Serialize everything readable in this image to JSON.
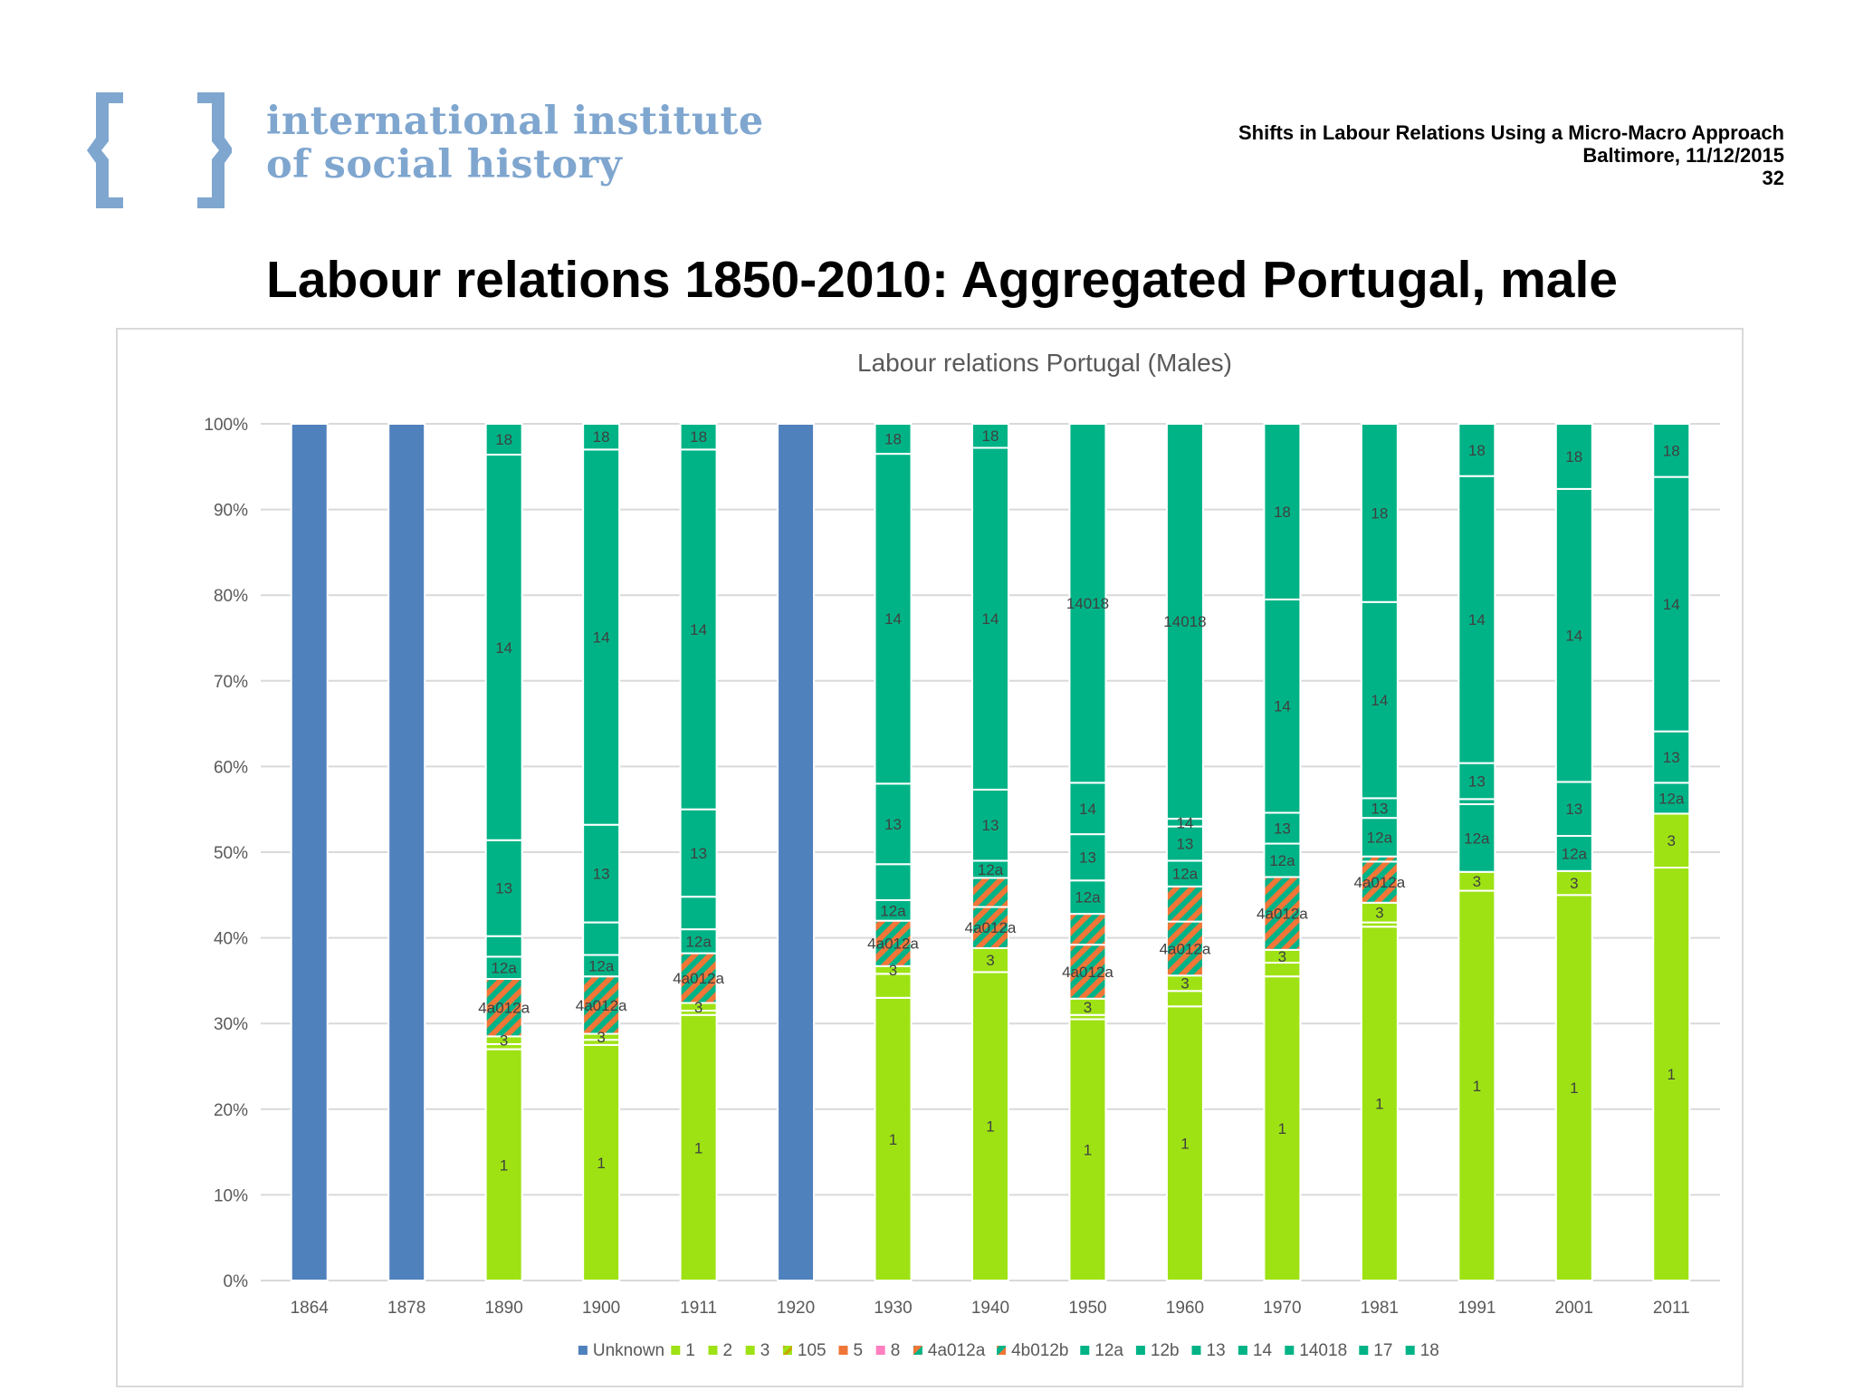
{
  "logo": {
    "line1": "international institute",
    "line2": "of social history",
    "color": "#7fa6cf"
  },
  "header": {
    "presentation": "Shifts in Labour Relations Using a Micro-Macro Approach",
    "place_date": "Baltimore, 11/12/2015",
    "page": "32"
  },
  "slide_title": "Labour relations 1850-2010: Aggregated Portugal, male",
  "chart_data": {
    "type": "bar",
    "stacked": "percent",
    "title": "Labour relations Portugal (Males)",
    "xlabel": "",
    "ylabel": "",
    "ylim": [
      0,
      100
    ],
    "yticks": [
      "0%",
      "10%",
      "20%",
      "30%",
      "40%",
      "50%",
      "60%",
      "70%",
      "80%",
      "90%",
      "100%"
    ],
    "grid": true,
    "legend_position": "bottom",
    "categories": [
      "1864",
      "1878",
      "1890",
      "1900",
      "1911",
      "1920",
      "1930",
      "1940",
      "1950",
      "1960",
      "1970",
      "1981",
      "1991",
      "2001",
      "2011"
    ],
    "legend": [
      {
        "name": "Unknown",
        "color": "#4f81bd",
        "pattern": "solid"
      },
      {
        "name": "1",
        "color": "#9ee214",
        "pattern": "solid"
      },
      {
        "name": "2",
        "color": "#9ee214",
        "pattern": "solid"
      },
      {
        "name": "3",
        "color": "#9ee214",
        "pattern": "solid"
      },
      {
        "name": "105",
        "color": "#9ee214",
        "pattern": "hatch"
      },
      {
        "name": "5",
        "color": "#ef7637",
        "pattern": "solid"
      },
      {
        "name": "8",
        "color": "#ff7fbf",
        "pattern": "solid"
      },
      {
        "name": "4a012a",
        "color": "#00b386",
        "pattern": "hatch"
      },
      {
        "name": "4b012b",
        "color": "#ef7637",
        "pattern": "hatch"
      },
      {
        "name": "12a",
        "color": "#00b386",
        "pattern": "solid"
      },
      {
        "name": "12b",
        "color": "#00b386",
        "pattern": "solid"
      },
      {
        "name": "13",
        "color": "#00b386",
        "pattern": "solid"
      },
      {
        "name": "14",
        "color": "#00b386",
        "pattern": "solid"
      },
      {
        "name": "14018",
        "color": "#00b386",
        "pattern": "solid"
      },
      {
        "name": "17",
        "color": "#00b386",
        "pattern": "solid"
      },
      {
        "name": "18",
        "color": "#00b386",
        "pattern": "solid"
      }
    ],
    "bars": [
      {
        "year": "1864",
        "segments": [
          {
            "name": "Unknown",
            "value": 100,
            "label": ""
          }
        ]
      },
      {
        "year": "1878",
        "segments": [
          {
            "name": "Unknown",
            "value": 100,
            "label": ""
          }
        ]
      },
      {
        "year": "1890",
        "segments": [
          {
            "name": "1",
            "value": 27,
            "label": "1"
          },
          {
            "name": "2",
            "value": 0.6,
            "label": ""
          },
          {
            "name": "3",
            "value": 0.9,
            "label": "3"
          },
          {
            "name": "4a012a",
            "value": 6.7,
            "label": "4a012a"
          },
          {
            "name": "12a",
            "value": 2.6,
            "label": "12a"
          },
          {
            "name": "12b",
            "value": 2.4,
            "label": ""
          },
          {
            "name": "13",
            "value": 11.2,
            "label": "13"
          },
          {
            "name": "14",
            "value": 45,
            "label": "14"
          },
          {
            "name": "18",
            "value": 3.6,
            "label": "18"
          }
        ]
      },
      {
        "year": "1900",
        "segments": [
          {
            "name": "1",
            "value": 27.5,
            "label": "1"
          },
          {
            "name": "2",
            "value": 0.6,
            "label": ""
          },
          {
            "name": "3",
            "value": 0.7,
            "label": "3"
          },
          {
            "name": "4a012a",
            "value": 6.7,
            "label": "4a012a"
          },
          {
            "name": "12a",
            "value": 2.5,
            "label": "12a"
          },
          {
            "name": "12b",
            "value": 3.8,
            "label": ""
          },
          {
            "name": "13",
            "value": 11.4,
            "label": "13"
          },
          {
            "name": "14",
            "value": 43.8,
            "label": "14"
          },
          {
            "name": "18",
            "value": 3,
            "label": "18"
          }
        ]
      },
      {
        "year": "1911",
        "segments": [
          {
            "name": "1",
            "value": 31,
            "label": "1"
          },
          {
            "name": "2",
            "value": 0.5,
            "label": ""
          },
          {
            "name": "3",
            "value": 0.9,
            "label": "3"
          },
          {
            "name": "4a012a",
            "value": 5.8,
            "label": "4a012a"
          },
          {
            "name": "12a",
            "value": 2.8,
            "label": "12a"
          },
          {
            "name": "12b",
            "value": 3.8,
            "label": ""
          },
          {
            "name": "13",
            "value": 10.2,
            "label": "13"
          },
          {
            "name": "14",
            "value": 42,
            "label": "14"
          },
          {
            "name": "18",
            "value": 3,
            "label": "18"
          }
        ]
      },
      {
        "year": "1920",
        "segments": [
          {
            "name": "Unknown",
            "value": 100,
            "label": ""
          }
        ]
      },
      {
        "year": "1930",
        "segments": [
          {
            "name": "1",
            "value": 33,
            "label": "1"
          },
          {
            "name": "2",
            "value": 2.8,
            "label": ""
          },
          {
            "name": "3",
            "value": 0.9,
            "label": "3"
          },
          {
            "name": "4a012a",
            "value": 5.3,
            "label": "4a012a"
          },
          {
            "name": "12a",
            "value": 2.4,
            "label": "12a"
          },
          {
            "name": "12b",
            "value": 4.2,
            "label": ""
          },
          {
            "name": "13",
            "value": 9.4,
            "label": "13"
          },
          {
            "name": "14",
            "value": 38.5,
            "label": "14"
          },
          {
            "name": "18",
            "value": 3.5,
            "label": "18"
          }
        ]
      },
      {
        "year": "1940",
        "segments": [
          {
            "name": "1",
            "value": 36,
            "label": "1"
          },
          {
            "name": "3",
            "value": 2.8,
            "label": "3"
          },
          {
            "name": "4a012a",
            "value": 4.8,
            "label": "4a012a"
          },
          {
            "name": "4b012b",
            "value": 3.4,
            "label": ""
          },
          {
            "name": "12a",
            "value": 2,
            "label": "12a"
          },
          {
            "name": "13",
            "value": 8.3,
            "label": "13"
          },
          {
            "name": "14",
            "value": 39.9,
            "label": "14"
          },
          {
            "name": "18",
            "value": 2.8,
            "label": "18"
          }
        ]
      },
      {
        "year": "1950",
        "segments": [
          {
            "name": "1",
            "value": 30.5,
            "label": "1"
          },
          {
            "name": "2",
            "value": 0.5,
            "label": ""
          },
          {
            "name": "3",
            "value": 1.9,
            "label": "3"
          },
          {
            "name": "4a012a",
            "value": 6.3,
            "label": "4a012a"
          },
          {
            "name": "4b012b",
            "value": 3.6,
            "label": ""
          },
          {
            "name": "12a",
            "value": 3.9,
            "label": "12a"
          },
          {
            "name": "13",
            "value": 5.4,
            "label": "13"
          },
          {
            "name": "14",
            "value": 6,
            "label": "14"
          },
          {
            "name": "14018",
            "value": 41.9,
            "label": "14018"
          }
        ]
      },
      {
        "year": "1960",
        "segments": [
          {
            "name": "1",
            "value": 32,
            "label": "1"
          },
          {
            "name": "2",
            "value": 1.8,
            "label": ""
          },
          {
            "name": "3",
            "value": 1.8,
            "label": "3"
          },
          {
            "name": "4a012a",
            "value": 6.3,
            "label": "4a012a"
          },
          {
            "name": "4b012b",
            "value": 4.1,
            "label": ""
          },
          {
            "name": "12a",
            "value": 3,
            "label": "12a"
          },
          {
            "name": "13",
            "value": 4,
            "label": "13"
          },
          {
            "name": "14",
            "value": 0.9,
            "label": "14"
          },
          {
            "name": "14018",
            "value": 46.1,
            "label": "14018"
          }
        ]
      },
      {
        "year": "1970",
        "segments": [
          {
            "name": "1",
            "value": 35.5,
            "label": "1"
          },
          {
            "name": "2",
            "value": 1.6,
            "label": ""
          },
          {
            "name": "3",
            "value": 1.5,
            "label": "3"
          },
          {
            "name": "4a012a",
            "value": 8.5,
            "label": "4a012a"
          },
          {
            "name": "12a",
            "value": 3.9,
            "label": "12a"
          },
          {
            "name": "13",
            "value": 3.6,
            "label": "13"
          },
          {
            "name": "14",
            "value": 24.9,
            "label": "14"
          },
          {
            "name": "18",
            "value": 20.5,
            "label": "18"
          }
        ]
      },
      {
        "year": "1981",
        "segments": [
          {
            "name": "1",
            "value": 41.3,
            "label": "1"
          },
          {
            "name": "2",
            "value": 0.5,
            "label": ""
          },
          {
            "name": "3",
            "value": 2.3,
            "label": "3"
          },
          {
            "name": "4a012a",
            "value": 4.8,
            "label": "4a012a"
          },
          {
            "name": "4b012b",
            "value": 0.6,
            "label": ""
          },
          {
            "name": "12a",
            "value": 4.5,
            "label": "12a"
          },
          {
            "name": "13",
            "value": 2.3,
            "label": "13"
          },
          {
            "name": "14",
            "value": 22.9,
            "label": "14"
          },
          {
            "name": "18",
            "value": 20.8,
            "label": "18"
          }
        ]
      },
      {
        "year": "1991",
        "segments": [
          {
            "name": "1",
            "value": 45.5,
            "label": "1"
          },
          {
            "name": "3",
            "value": 2.2,
            "label": "3"
          },
          {
            "name": "12a",
            "value": 7.9,
            "label": "12a"
          },
          {
            "name": "12b",
            "value": 0.6,
            "label": ""
          },
          {
            "name": "13",
            "value": 4.2,
            "label": "13"
          },
          {
            "name": "14",
            "value": 33.5,
            "label": "14"
          },
          {
            "name": "18",
            "value": 6.1,
            "label": "18"
          }
        ]
      },
      {
        "year": "2001",
        "segments": [
          {
            "name": "1",
            "value": 45,
            "label": "1"
          },
          {
            "name": "3",
            "value": 2.8,
            "label": "3"
          },
          {
            "name": "12a",
            "value": 4.1,
            "label": "12a"
          },
          {
            "name": "13",
            "value": 6.3,
            "label": "13"
          },
          {
            "name": "14",
            "value": 34.2,
            "label": "14"
          },
          {
            "name": "18",
            "value": 7.6,
            "label": "18"
          }
        ]
      },
      {
        "year": "2011",
        "segments": [
          {
            "name": "1",
            "value": 48.2,
            "label": "1"
          },
          {
            "name": "3",
            "value": 6.3,
            "label": "3"
          },
          {
            "name": "12a",
            "value": 3.6,
            "label": "12a"
          },
          {
            "name": "13",
            "value": 6,
            "label": "13"
          },
          {
            "name": "14",
            "value": 29.7,
            "label": "14"
          },
          {
            "name": "18",
            "value": 6.2,
            "label": "18"
          }
        ]
      }
    ]
  }
}
